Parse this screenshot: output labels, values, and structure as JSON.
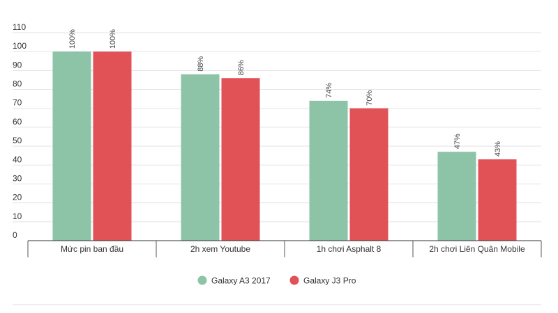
{
  "chart_data": {
    "type": "bar",
    "categories": [
      "Mức pin ban đầu",
      "2h xem Youtube",
      "1h chơi Asphalt 8",
      "2h chơi Liên Quân Mobile"
    ],
    "series": [
      {
        "name": "Galaxy A3 2017",
        "values": [
          100,
          88,
          74,
          47
        ],
        "labels": [
          "100%",
          "88%",
          "74%",
          "47%"
        ],
        "color": "#8dc3a7"
      },
      {
        "name": "Galaxy J3 Pro",
        "values": [
          100,
          86,
          70,
          43
        ],
        "labels": [
          "100%",
          "86%",
          "70%",
          "43%"
        ],
        "color": "#e05256"
      }
    ],
    "ylim": [
      0,
      110
    ],
    "yticks": [
      "0",
      "10",
      "20",
      "30",
      "40",
      "50",
      "60",
      "70",
      "80",
      "90",
      "100",
      "110"
    ],
    "grid": true,
    "legend": "bottom-center",
    "title": "",
    "xlabel": "",
    "ylabel": ""
  }
}
